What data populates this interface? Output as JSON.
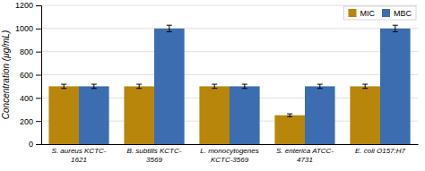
{
  "chart_data": {
    "type": "bar",
    "categories": [
      "S. aureus KCTC-\n1621",
      "B. subtilis KCTC-\n3569",
      "L. monocytogenes\nKCTC-3569",
      "S. enterica ATCC-\n4731",
      "E. coli O157:H7"
    ],
    "series": [
      {
        "name": "MIC",
        "color": "#B8860B",
        "values": [
          500,
          500,
          500,
          250,
          500
        ],
        "errors": [
          18,
          18,
          18,
          12,
          18
        ]
      },
      {
        "name": "MBC",
        "color": "#3B6DB0",
        "values": [
          500,
          1000,
          500,
          500,
          1000
        ],
        "errors": [
          18,
          28,
          18,
          18,
          28
        ]
      }
    ],
    "ylabel": "Concentration (μg/mL)",
    "ylim": [
      0,
      1200
    ],
    "yticks": [
      0,
      200,
      400,
      600,
      800,
      1000,
      1200
    ],
    "grid": true,
    "legend": "upper right"
  }
}
